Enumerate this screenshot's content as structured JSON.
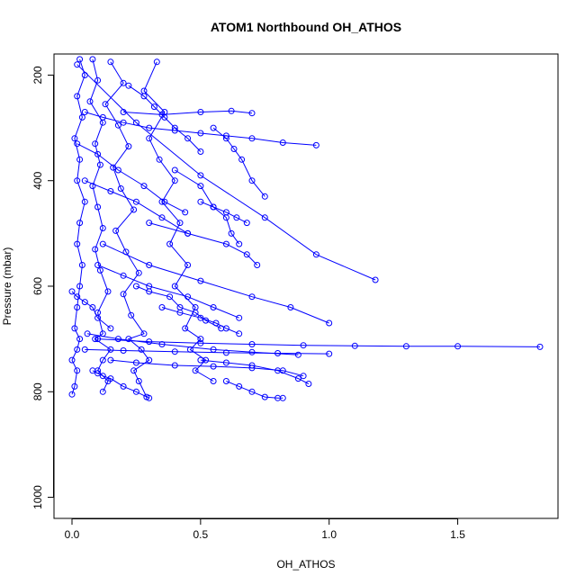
{
  "chart_data": {
    "type": "scatter",
    "title": "ATOM1 Northbound OH_ATHOS",
    "xlabel": "OH_ATHOS",
    "ylabel": "Pressure (mbar)",
    "xlim": [
      -0.07,
      1.89
    ],
    "ylim": [
      1040,
      160
    ],
    "y_reversed": true,
    "x_ticks": [
      0.0,
      0.5,
      1.0,
      1.5
    ],
    "x_tick_labels": [
      "0.0",
      "0.5",
      "1.0",
      "1.5"
    ],
    "y_ticks": [
      200,
      400,
      600,
      800,
      1000
    ],
    "y_tick_labels": [
      "200",
      "400",
      "600",
      "800",
      "1000"
    ],
    "grid": false,
    "marker": "open-circle",
    "color": "#0000ff",
    "series": [
      {
        "x": [
          0.03,
          0.05,
          0.02,
          0.04,
          0.01,
          0.03,
          0.02,
          0.05,
          0.03,
          0.02,
          0.04,
          0.03,
          0.02,
          0.01,
          0.03,
          0.02,
          0.0,
          0.02,
          0.01,
          0.0
        ],
        "y": [
          170,
          200,
          240,
          280,
          320,
          360,
          400,
          440,
          480,
          520,
          560,
          600,
          640,
          680,
          700,
          720,
          740,
          760,
          790,
          805
        ]
      },
      {
        "x": [
          0.08,
          0.1,
          0.07,
          0.12,
          0.09,
          0.11,
          0.08,
          0.1,
          0.12,
          0.09,
          0.11,
          0.14,
          0.1,
          0.12,
          0.09,
          0.15,
          0.12,
          0.1,
          0.14,
          0.12
        ],
        "y": [
          170,
          210,
          250,
          290,
          330,
          370,
          410,
          450,
          490,
          530,
          570,
          610,
          650,
          690,
          700,
          720,
          740,
          760,
          780,
          800
        ]
      },
      {
        "x": [
          0.15,
          0.2,
          0.13,
          0.18,
          0.22,
          0.16,
          0.19,
          0.24,
          0.17,
          0.21,
          0.26,
          0.2,
          0.23,
          0.28,
          0.22,
          0.27,
          0.3,
          0.24,
          0.26,
          0.29
        ],
        "y": [
          175,
          215,
          255,
          295,
          335,
          375,
          415,
          455,
          495,
          535,
          575,
          615,
          655,
          690,
          700,
          720,
          740,
          760,
          780,
          810
        ]
      },
      {
        "x": [
          0.33,
          0.28,
          0.36,
          0.3,
          0.34,
          0.4,
          0.35,
          0.42,
          0.38,
          0.45,
          0.4,
          0.48,
          0.44,
          0.5,
          0.46,
          0.52,
          0.48,
          0.55
        ],
        "y": [
          175,
          230,
          270,
          320,
          360,
          400,
          440,
          480,
          520,
          560,
          600,
          640,
          680,
          700,
          720,
          740,
          760,
          780
        ]
      },
      {
        "x": [
          0.05,
          0.12,
          0.2,
          0.3,
          0.4,
          0.5,
          0.6,
          0.7,
          0.82,
          0.95
        ],
        "y": [
          270,
          280,
          290,
          300,
          305,
          310,
          315,
          320,
          328,
          333
        ]
      },
      {
        "x": [
          0.02,
          0.25,
          0.5,
          0.75,
          0.95,
          1.18
        ],
        "y": [
          180,
          290,
          390,
          470,
          540,
          588
        ]
      },
      {
        "x": [
          0.1,
          0.3,
          0.5,
          0.7,
          0.9,
          1.1,
          1.3,
          1.5,
          1.82
        ],
        "y": [
          700,
          705,
          708,
          710,
          712,
          713,
          714,
          714,
          715
        ]
      },
      {
        "x": [
          0.05,
          0.2,
          0.4,
          0.6,
          0.8,
          1.0
        ],
        "y": [
          720,
          722,
          724,
          726,
          727,
          728
        ]
      },
      {
        "x": [
          0.06,
          0.18,
          0.35,
          0.55,
          0.7,
          0.88
        ],
        "y": [
          690,
          700,
          710,
          720,
          725,
          730
        ]
      },
      {
        "x": [
          0.12,
          0.3,
          0.5,
          0.7,
          0.85,
          1.0
        ],
        "y": [
          520,
          560,
          590,
          620,
          640,
          670
        ]
      },
      {
        "x": [
          0.2,
          0.35,
          0.5,
          0.62,
          0.7
        ],
        "y": [
          270,
          275,
          270,
          268,
          272
        ]
      },
      {
        "x": [
          0.4,
          0.5,
          0.55,
          0.6,
          0.62,
          0.65
        ],
        "y": [
          380,
          410,
          450,
          470,
          500,
          520
        ]
      },
      {
        "x": [
          0.3,
          0.45,
          0.6,
          0.68,
          0.72
        ],
        "y": [
          480,
          500,
          520,
          540,
          560
        ]
      },
      {
        "x": [
          0.55,
          0.6,
          0.63,
          0.66,
          0.7,
          0.75
        ],
        "y": [
          300,
          320,
          340,
          360,
          400,
          430
        ]
      },
      {
        "x": [
          0.1,
          0.2,
          0.3,
          0.45,
          0.55,
          0.65
        ],
        "y": [
          560,
          580,
          600,
          620,
          640,
          660
        ]
      },
      {
        "x": [
          0.15,
          0.25,
          0.4,
          0.55,
          0.7,
          0.82,
          0.9
        ],
        "y": [
          740,
          745,
          750,
          752,
          755,
          760,
          770
        ]
      },
      {
        "x": [
          0.6,
          0.65,
          0.7,
          0.75,
          0.8,
          0.82
        ],
        "y": [
          780,
          790,
          800,
          810,
          812,
          812
        ]
      },
      {
        "x": [
          0.5,
          0.6,
          0.7,
          0.8,
          0.88,
          0.92
        ],
        "y": [
          740,
          745,
          750,
          760,
          775,
          785
        ]
      },
      {
        "x": [
          0.08,
          0.1,
          0.12,
          0.15,
          0.2,
          0.25,
          0.3
        ],
        "y": [
          760,
          765,
          770,
          775,
          790,
          800,
          812
        ]
      },
      {
        "x": [
          0.25,
          0.3,
          0.38,
          0.42,
          0.48,
          0.52,
          0.58
        ],
        "y": [
          600,
          610,
          620,
          640,
          650,
          665,
          680
        ]
      },
      {
        "x": [
          0.35,
          0.42,
          0.5,
          0.56,
          0.6,
          0.65
        ],
        "y": [
          640,
          650,
          660,
          670,
          680,
          690
        ]
      },
      {
        "x": [
          0.05,
          0.15,
          0.25,
          0.35,
          0.45
        ],
        "y": [
          400,
          420,
          440,
          470,
          500
        ]
      },
      {
        "x": [
          0.02,
          0.1,
          0.18,
          0.28,
          0.36,
          0.44
        ],
        "y": [
          330,
          350,
          380,
          410,
          440,
          460
        ]
      },
      {
        "x": [
          0.22,
          0.28,
          0.32,
          0.36,
          0.4,
          0.45,
          0.5
        ],
        "y": [
          220,
          240,
          260,
          280,
          300,
          320,
          345
        ]
      },
      {
        "x": [
          0.0,
          0.02,
          0.05,
          0.08,
          0.1,
          0.15
        ],
        "y": [
          610,
          620,
          630,
          640,
          660,
          680
        ]
      },
      {
        "x": [
          0.5,
          0.55,
          0.6,
          0.64,
          0.68
        ],
        "y": [
          440,
          450,
          460,
          470,
          480
        ]
      }
    ]
  }
}
